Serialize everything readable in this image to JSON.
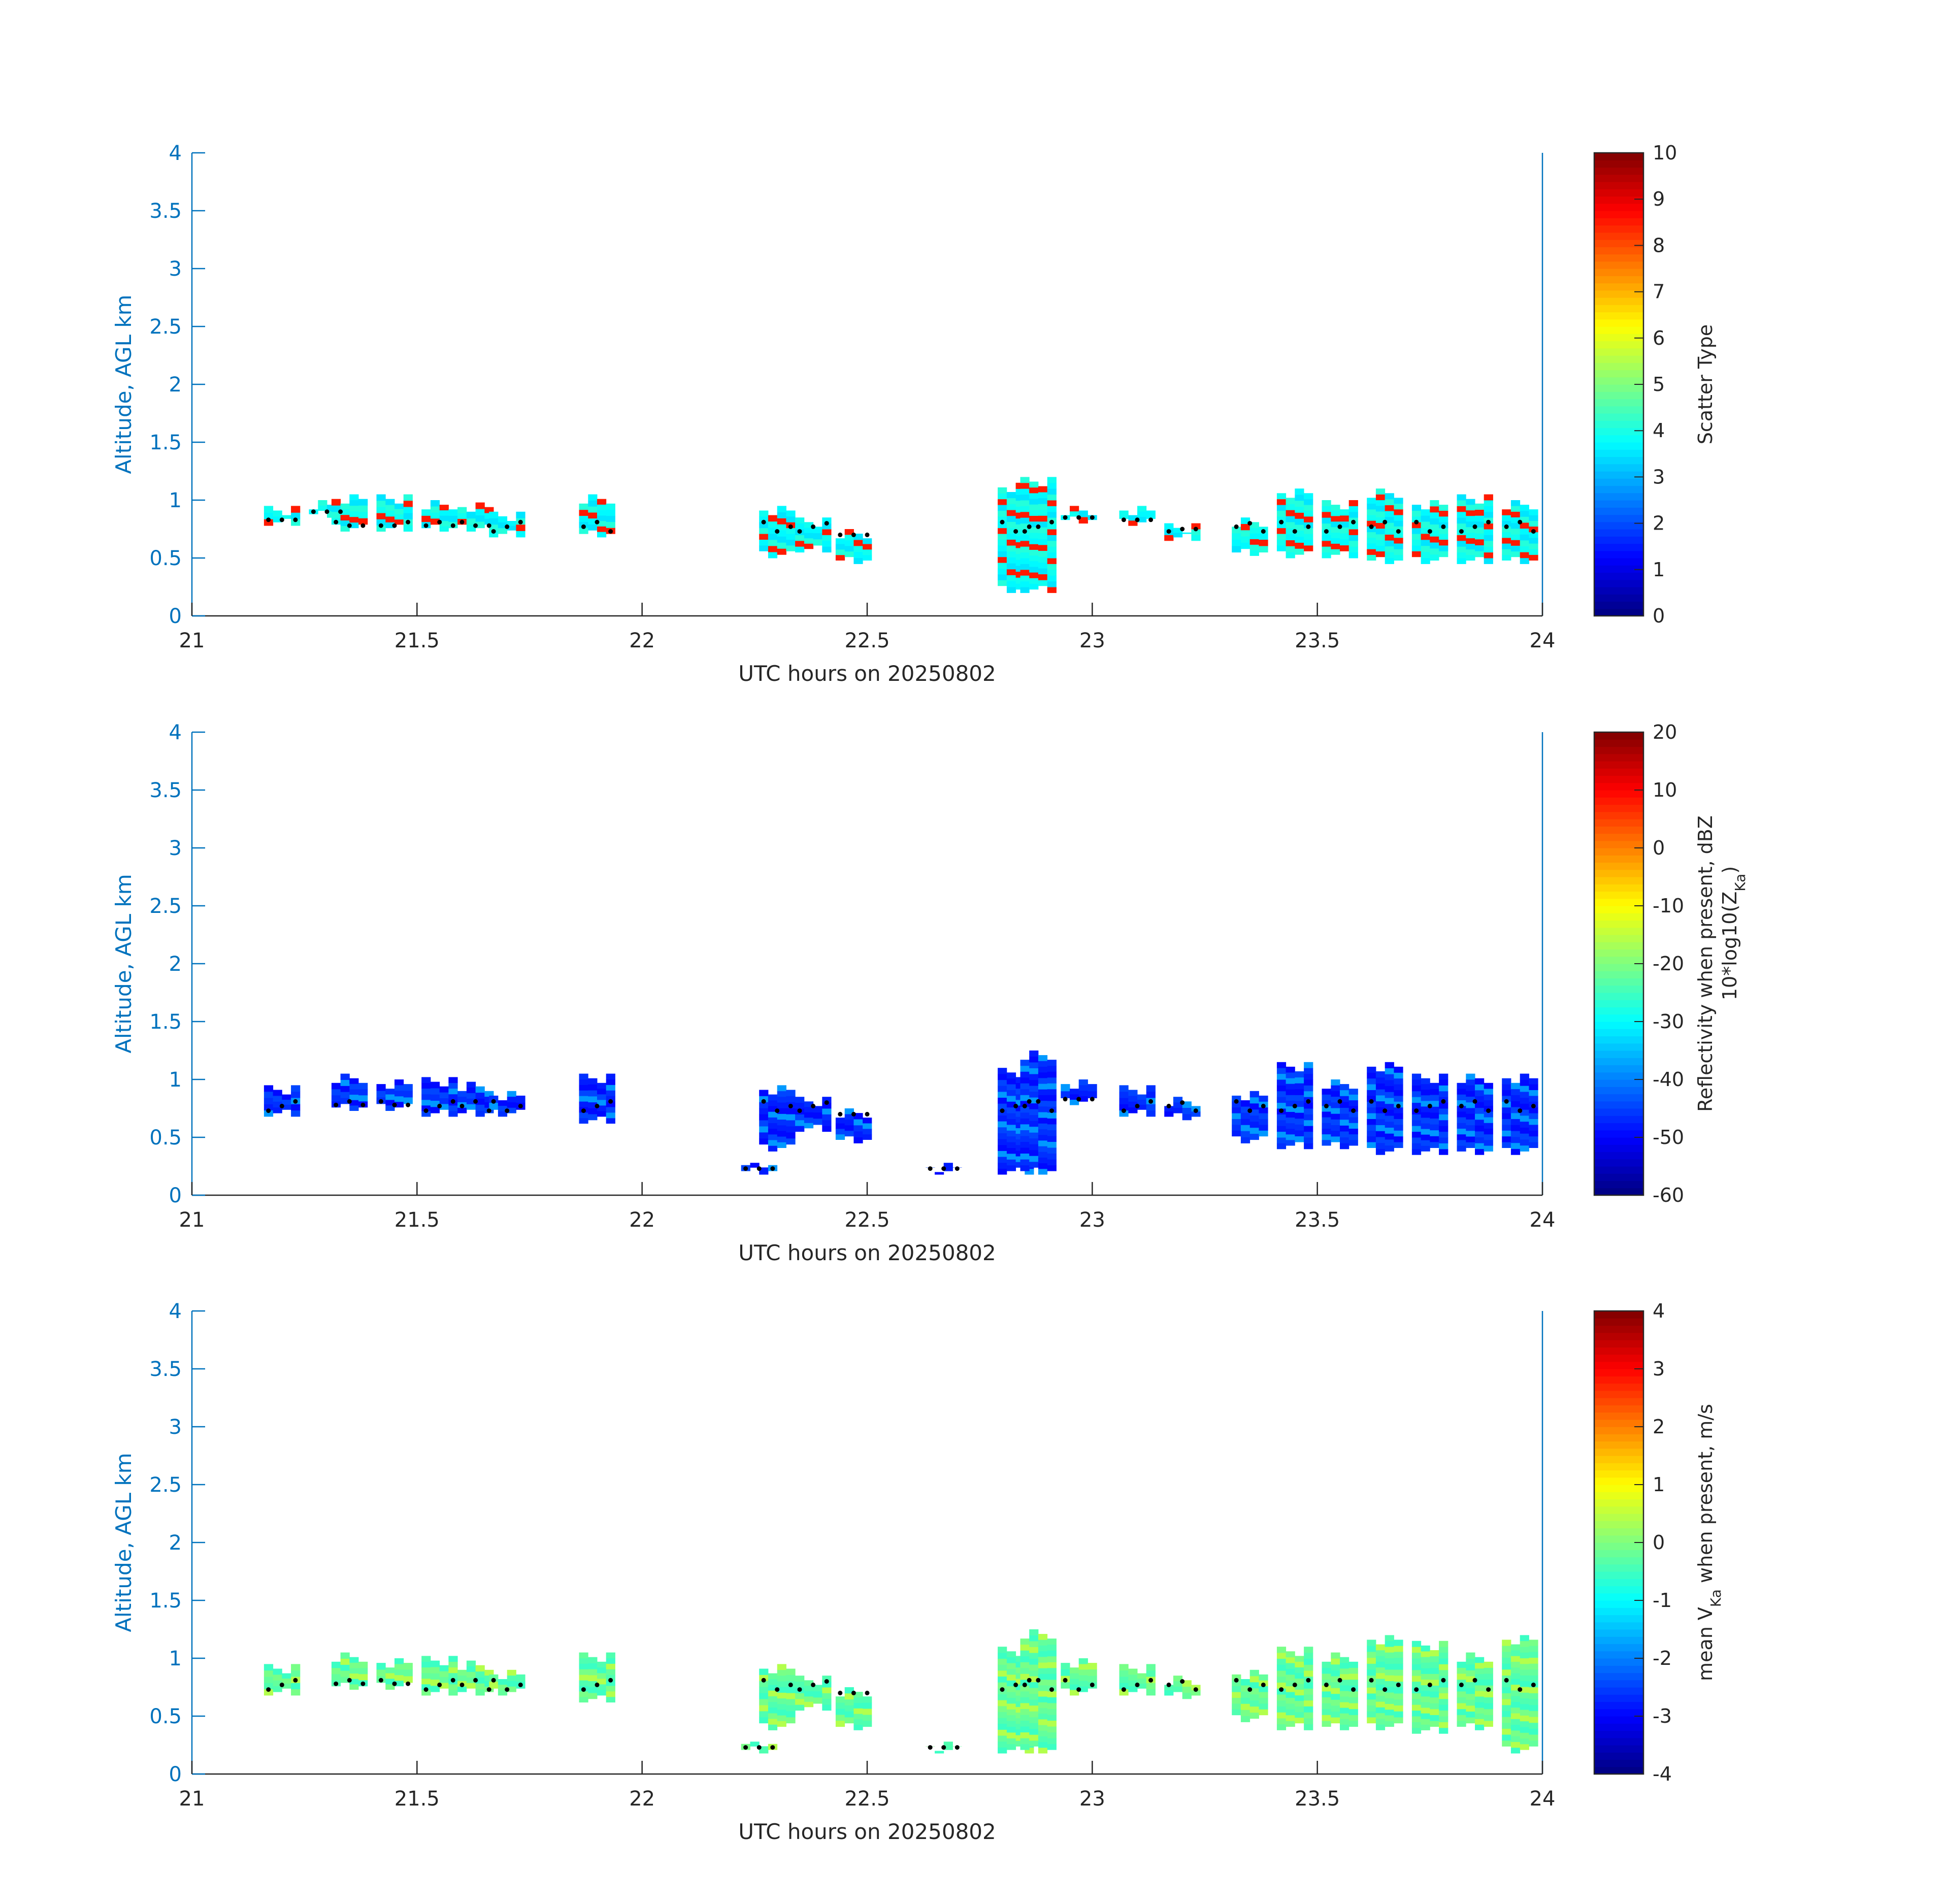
{
  "chart_data": [
    {
      "type": "heatmap",
      "title": "",
      "xlabel": "UTC hours on 20250802",
      "ylabel": "Altitude, AGL km",
      "xlim": [
        21,
        24
      ],
      "ylim": [
        0,
        4
      ],
      "xticks": [
        "21",
        "21.5",
        "22",
        "22.5",
        "23",
        "23.5",
        "24"
      ],
      "yticks": [
        "0",
        "0.5",
        "1",
        "1.5",
        "2",
        "2.5",
        "3",
        "3.5",
        "4"
      ],
      "colorbar": {
        "label": "Scatter Type",
        "label_line2": "",
        "clim": [
          0,
          10
        ],
        "ticks": [
          "0",
          "1",
          "2",
          "3",
          "4",
          "5",
          "6",
          "7",
          "8",
          "9",
          "10"
        ],
        "colormap": "jet"
      },
      "dominant_value": 3.8,
      "secondary_value": 8.5,
      "columns": [
        {
          "x": 21.2,
          "bot": 0.78,
          "top": 0.95
        },
        {
          "x": 21.3,
          "bot": 0.85,
          "top": 1.0
        },
        {
          "x": 21.35,
          "bot": 0.73,
          "top": 1.05
        },
        {
          "x": 21.45,
          "bot": 0.73,
          "top": 1.05
        },
        {
          "x": 21.55,
          "bot": 0.73,
          "top": 1.0
        },
        {
          "x": 21.63,
          "bot": 0.73,
          "top": 0.98
        },
        {
          "x": 21.7,
          "bot": 0.68,
          "top": 0.9
        },
        {
          "x": 21.9,
          "bot": 0.68,
          "top": 1.05
        },
        {
          "x": 22.3,
          "bot": 0.5,
          "top": 0.95
        },
        {
          "x": 22.38,
          "bot": 0.55,
          "top": 0.85
        },
        {
          "x": 22.47,
          "bot": 0.45,
          "top": 0.75
        },
        {
          "x": 22.83,
          "bot": 0.2,
          "top": 1.15
        },
        {
          "x": 22.88,
          "bot": 0.2,
          "top": 1.2
        },
        {
          "x": 22.97,
          "bot": 0.8,
          "top": 0.95
        },
        {
          "x": 23.1,
          "bot": 0.78,
          "top": 0.95
        },
        {
          "x": 23.2,
          "bot": 0.65,
          "top": 0.8
        },
        {
          "x": 23.35,
          "bot": 0.52,
          "top": 0.85
        },
        {
          "x": 23.45,
          "bot": 0.5,
          "top": 1.1
        },
        {
          "x": 23.55,
          "bot": 0.5,
          "top": 1.0
        },
        {
          "x": 23.65,
          "bot": 0.45,
          "top": 1.1
        },
        {
          "x": 23.75,
          "bot": 0.45,
          "top": 1.0
        },
        {
          "x": 23.85,
          "bot": 0.45,
          "top": 1.05
        },
        {
          "x": 23.95,
          "bot": 0.45,
          "top": 1.0
        }
      ],
      "trace_y": 0.78
    },
    {
      "type": "heatmap",
      "title": "",
      "xlabel": "UTC hours on 20250802",
      "ylabel": "Altitude, AGL km",
      "xlim": [
        21,
        24
      ],
      "ylim": [
        0,
        4
      ],
      "xticks": [
        "21",
        "21.5",
        "22",
        "22.5",
        "23",
        "23.5",
        "24"
      ],
      "yticks": [
        "0",
        "0.5",
        "1",
        "1.5",
        "2",
        "2.5",
        "3",
        "3.5",
        "4"
      ],
      "colorbar": {
        "label": "Reflectivity when present, dBZ",
        "label_line2": "10*log10(Z",
        "label_line2_sub": "Ka",
        "label_line2_end": ")",
        "clim": [
          -60,
          20
        ],
        "ticks": [
          "-60",
          "-50",
          "-40",
          "-30",
          "-20",
          "-10",
          "0",
          "10",
          "20"
        ],
        "colormap": "jet"
      },
      "dominant_value": -47,
      "secondary_value": -38,
      "columns": [
        {
          "x": 21.2,
          "bot": 0.68,
          "top": 0.95
        },
        {
          "x": 21.35,
          "bot": 0.73,
          "top": 1.05
        },
        {
          "x": 21.45,
          "bot": 0.73,
          "top": 1.0
        },
        {
          "x": 21.55,
          "bot": 0.68,
          "top": 1.02
        },
        {
          "x": 21.63,
          "bot": 0.68,
          "top": 0.98
        },
        {
          "x": 21.7,
          "bot": 0.68,
          "top": 0.9
        },
        {
          "x": 21.9,
          "bot": 0.62,
          "top": 1.05
        },
        {
          "x": 22.26,
          "bot": 0.18,
          "top": 0.28
        },
        {
          "x": 22.3,
          "bot": 0.38,
          "top": 0.95
        },
        {
          "x": 22.38,
          "bot": 0.55,
          "top": 0.85
        },
        {
          "x": 22.47,
          "bot": 0.45,
          "top": 0.75
        },
        {
          "x": 22.67,
          "bot": 0.18,
          "top": 0.28
        },
        {
          "x": 22.83,
          "bot": 0.18,
          "top": 1.1
        },
        {
          "x": 22.88,
          "bot": 0.18,
          "top": 1.25
        },
        {
          "x": 22.97,
          "bot": 0.78,
          "top": 1.0
        },
        {
          "x": 23.1,
          "bot": 0.68,
          "top": 0.95
        },
        {
          "x": 23.2,
          "bot": 0.65,
          "top": 0.85
        },
        {
          "x": 23.35,
          "bot": 0.45,
          "top": 0.9
        },
        {
          "x": 23.45,
          "bot": 0.4,
          "top": 1.15
        },
        {
          "x": 23.55,
          "bot": 0.4,
          "top": 1.0
        },
        {
          "x": 23.65,
          "bot": 0.35,
          "top": 1.15
        },
        {
          "x": 23.75,
          "bot": 0.35,
          "top": 1.05
        },
        {
          "x": 23.85,
          "bot": 0.35,
          "top": 1.05
        },
        {
          "x": 23.95,
          "bot": 0.35,
          "top": 1.05
        }
      ],
      "trace_y": 0.78
    },
    {
      "type": "heatmap",
      "title": "",
      "xlabel": "UTC hours on 20250802",
      "ylabel": "Altitude, AGL km",
      "xlim": [
        21,
        24
      ],
      "ylim": [
        0,
        4
      ],
      "xticks": [
        "21",
        "21.5",
        "22",
        "22.5",
        "23",
        "23.5",
        "24"
      ],
      "yticks": [
        "0",
        "0.5",
        "1",
        "1.5",
        "2",
        "2.5",
        "3",
        "3.5",
        "4"
      ],
      "colorbar": {
        "label": "mean V",
        "label_sub": "Ka",
        "label_end": " when present, m/s",
        "label_line2": "",
        "clim": [
          -4,
          4
        ],
        "ticks": [
          "-4",
          "-3",
          "-2",
          "-1",
          "0",
          "1",
          "2",
          "3",
          "4"
        ],
        "colormap": "jet"
      },
      "dominant_value": -0.3,
      "secondary_value": 0.4,
      "columns": [
        {
          "x": 21.2,
          "bot": 0.68,
          "top": 0.95
        },
        {
          "x": 21.35,
          "bot": 0.73,
          "top": 1.05
        },
        {
          "x": 21.45,
          "bot": 0.73,
          "top": 1.0
        },
        {
          "x": 21.55,
          "bot": 0.68,
          "top": 1.02
        },
        {
          "x": 21.63,
          "bot": 0.68,
          "top": 0.98
        },
        {
          "x": 21.7,
          "bot": 0.68,
          "top": 0.9
        },
        {
          "x": 21.9,
          "bot": 0.62,
          "top": 1.05
        },
        {
          "x": 22.26,
          "bot": 0.18,
          "top": 0.28
        },
        {
          "x": 22.3,
          "bot": 0.38,
          "top": 0.95
        },
        {
          "x": 22.38,
          "bot": 0.55,
          "top": 0.85
        },
        {
          "x": 22.47,
          "bot": 0.38,
          "top": 0.75
        },
        {
          "x": 22.67,
          "bot": 0.18,
          "top": 0.28
        },
        {
          "x": 22.83,
          "bot": 0.18,
          "top": 1.1
        },
        {
          "x": 22.88,
          "bot": 0.18,
          "top": 1.25
        },
        {
          "x": 22.97,
          "bot": 0.68,
          "top": 1.0
        },
        {
          "x": 23.1,
          "bot": 0.68,
          "top": 0.95
        },
        {
          "x": 23.2,
          "bot": 0.65,
          "top": 0.85
        },
        {
          "x": 23.35,
          "bot": 0.45,
          "top": 0.9
        },
        {
          "x": 23.45,
          "bot": 0.38,
          "top": 1.1
        },
        {
          "x": 23.55,
          "bot": 0.38,
          "top": 1.05
        },
        {
          "x": 23.65,
          "bot": 0.38,
          "top": 1.2
        },
        {
          "x": 23.75,
          "bot": 0.35,
          "top": 1.15
        },
        {
          "x": 23.85,
          "bot": 0.38,
          "top": 1.05
        },
        {
          "x": 23.95,
          "bot": 0.18,
          "top": 1.2
        }
      ],
      "trace_y": 0.78
    }
  ]
}
